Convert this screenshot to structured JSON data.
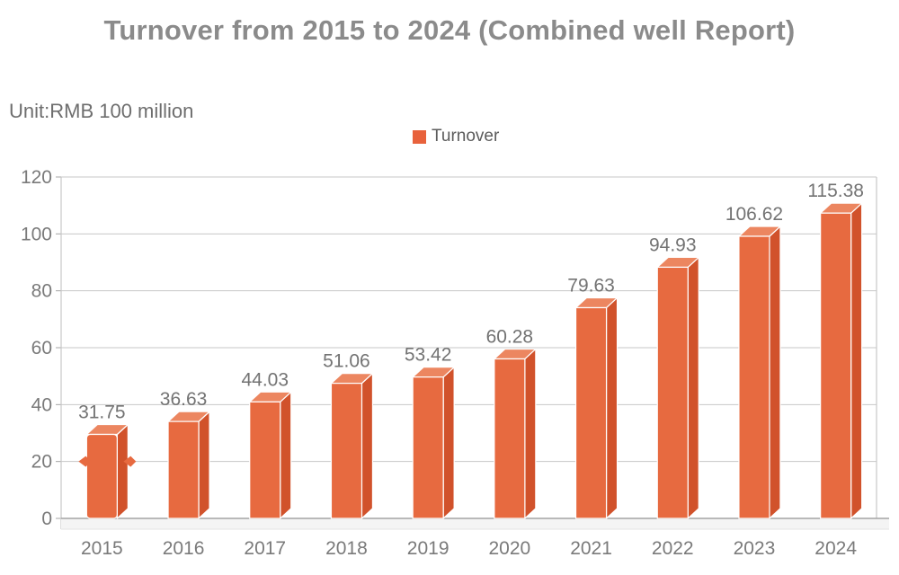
{
  "chart_data": {
    "type": "bar",
    "title": "Turnover from 2015 to 2024 (Combined well Report)",
    "unit_label": "Unit:RMB 100 million",
    "legend": {
      "label": "Turnover",
      "position": "top-center",
      "swatch_color": "#E8623C"
    },
    "categories": [
      "2015",
      "2016",
      "2017",
      "2018",
      "2019",
      "2020",
      "2021",
      "2022",
      "2023",
      "2024"
    ],
    "series": [
      {
        "name": "Turnover",
        "values": [
          31.75,
          36.63,
          44.03,
          51.06,
          53.42,
          60.28,
          79.63,
          94.93,
          106.62,
          115.38
        ]
      }
    ],
    "ylim": [
      0,
      120
    ],
    "ytick_step": 20,
    "yticks": [
      0,
      20,
      40,
      60,
      80,
      100,
      120
    ],
    "xlabel": "",
    "ylabel": "",
    "grid": true,
    "bar_style": "3d-box",
    "colors": {
      "bar_front": "#E76A40",
      "bar_side": "#D1522B",
      "bar_top": "#EC8660",
      "edge": "#FFFFFF",
      "grid": "#C7C7C7",
      "axis": "#A4A4A4",
      "floor_fill": "#F4F4F4",
      "floor_bottom": "#E3E3E3",
      "title_text": "#8B8B8B",
      "unit_text": "#6E6E6E",
      "legend_text": "#5C5C5C",
      "tick_text": "#7A7A7A",
      "value_text": "#737373"
    },
    "decorations": [
      {
        "category": "2015",
        "type": "side-braces",
        "at_value": 20
      }
    ]
  }
}
